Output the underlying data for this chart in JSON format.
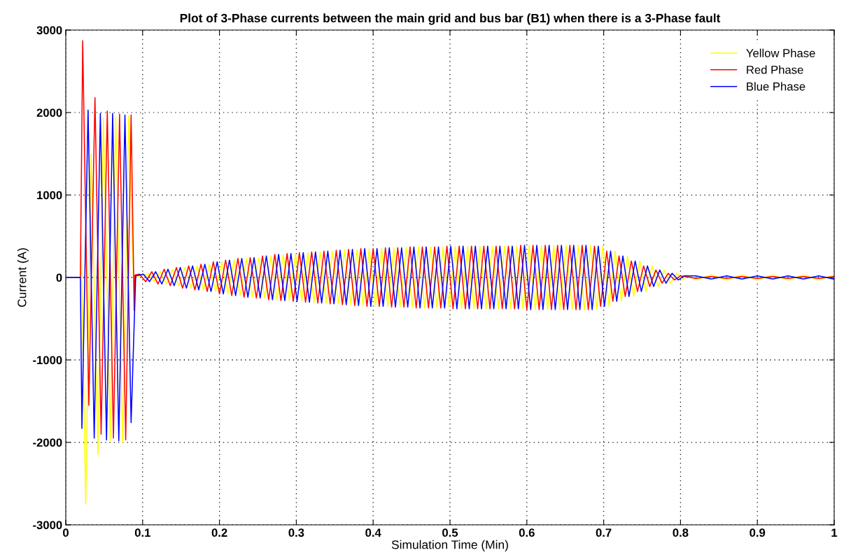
{
  "chart_data": {
    "type": "line",
    "title": "Plot of 3-Phase currents between the main grid and bus bar (B1) when there is a 3-Phase fault",
    "xlabel": "Simulation Time (Min)",
    "ylabel": "Current (A)",
    "xlim": [
      0,
      1
    ],
    "ylim": [
      -3000,
      3000
    ],
    "xticks": [
      0,
      0.1,
      0.2,
      0.3,
      0.4,
      0.5,
      0.6,
      0.7,
      0.8,
      0.9,
      1
    ],
    "yticks": [
      -3000,
      -2000,
      -1000,
      0,
      1000,
      2000,
      3000
    ],
    "grid": true,
    "legend": "top right",
    "series": [
      {
        "name": "Yellow Phase",
        "color": "#ffff00",
        "x": [
          0,
          0.019,
          0.02,
          0.026,
          0.033,
          0.042,
          0.049,
          0.058,
          0.065,
          0.074,
          0.082,
          0.088,
          0.107,
          0.115,
          0.123,
          0.131,
          0.139,
          0.147,
          0.155,
          0.163,
          0.171,
          0.179,
          0.187,
          0.195,
          0.203,
          0.211,
          0.219,
          0.227,
          0.235,
          0.243,
          0.251,
          0.259,
          0.267,
          0.275,
          0.283,
          0.291,
          0.299,
          0.307,
          0.315,
          0.323,
          0.331,
          0.339,
          0.347,
          0.355,
          0.363,
          0.371,
          0.379,
          0.387,
          0.395,
          0.403,
          0.411,
          0.419,
          0.427,
          0.435,
          0.443,
          0.451,
          0.459,
          0.467,
          0.475,
          0.483,
          0.491,
          0.499,
          0.507,
          0.515,
          0.523,
          0.531,
          0.539,
          0.547,
          0.555,
          0.563,
          0.571,
          0.579,
          0.587,
          0.595,
          0.603,
          0.611,
          0.619,
          0.627,
          0.635,
          0.643,
          0.651,
          0.659,
          0.667,
          0.675,
          0.683,
          0.691,
          0.699,
          0.707,
          0.715,
          0.723,
          0.731,
          0.739,
          0.747,
          0.755,
          0.763,
          0.771,
          0.779,
          0.787,
          0.795,
          0.803,
          0.811,
          0.82,
          0.84,
          0.86,
          0.88,
          0.9,
          0.92,
          0.94,
          0.96,
          0.98,
          1.0
        ],
        "values": [
          0,
          0,
          400,
          -2750,
          1500,
          -2150,
          1930,
          -1980,
          1950,
          -2000,
          1960,
          0,
          40,
          -50,
          70,
          -80,
          100,
          -100,
          120,
          -130,
          140,
          -150,
          160,
          -170,
          190,
          -200,
          210,
          -220,
          230,
          -240,
          240,
          -250,
          260,
          -270,
          280,
          -280,
          290,
          -290,
          300,
          -300,
          310,
          -310,
          320,
          -320,
          330,
          -330,
          340,
          -340,
          350,
          -350,
          350,
          -350,
          360,
          -360,
          360,
          -360,
          370,
          -370,
          370,
          -370,
          370,
          -370,
          380,
          -380,
          380,
          -380,
          380,
          -380,
          380,
          -380,
          380,
          -380,
          380,
          -380,
          390,
          -390,
          390,
          -390,
          390,
          -390,
          390,
          -390,
          390,
          -390,
          390,
          -390,
          380,
          -350,
          320,
          -290,
          260,
          -230,
          200,
          -170,
          140,
          -110,
          90,
          -70,
          50,
          -30,
          20,
          -30,
          30,
          -30,
          30,
          -30,
          30,
          -30,
          30,
          -30,
          30
        ]
      },
      {
        "name": "Red Phase",
        "color": "#ff0000",
        "x": [
          0,
          0.019,
          0.022,
          0.03,
          0.038,
          0.046,
          0.054,
          0.062,
          0.07,
          0.078,
          0.085,
          0.089,
          0.09,
          0.096,
          0.104,
          0.112,
          0.12,
          0.128,
          0.136,
          0.144,
          0.152,
          0.16,
          0.168,
          0.176,
          0.184,
          0.192,
          0.2,
          0.208,
          0.216,
          0.224,
          0.232,
          0.24,
          0.248,
          0.256,
          0.264,
          0.272,
          0.28,
          0.288,
          0.296,
          0.304,
          0.312,
          0.32,
          0.328,
          0.336,
          0.344,
          0.352,
          0.36,
          0.368,
          0.376,
          0.384,
          0.392,
          0.4,
          0.408,
          0.416,
          0.424,
          0.432,
          0.44,
          0.448,
          0.456,
          0.464,
          0.472,
          0.48,
          0.488,
          0.496,
          0.504,
          0.512,
          0.52,
          0.528,
          0.536,
          0.544,
          0.552,
          0.56,
          0.568,
          0.576,
          0.584,
          0.592,
          0.6,
          0.608,
          0.616,
          0.624,
          0.632,
          0.64,
          0.648,
          0.656,
          0.664,
          0.672,
          0.68,
          0.688,
          0.696,
          0.704,
          0.712,
          0.72,
          0.728,
          0.736,
          0.744,
          0.752,
          0.76,
          0.768,
          0.776,
          0.784,
          0.792,
          0.8,
          0.82,
          0.84,
          0.86,
          0.88,
          0.9,
          0.92,
          0.94,
          0.96,
          0.98,
          1.0
        ],
        "values": [
          0,
          0,
          2870,
          -1550,
          2180,
          -1900,
          2020,
          -1950,
          1980,
          -1970,
          1970,
          -400,
          30,
          40,
          -50,
          70,
          -80,
          100,
          -100,
          120,
          -130,
          140,
          -150,
          160,
          -170,
          190,
          -200,
          210,
          -220,
          230,
          -240,
          240,
          -250,
          260,
          -270,
          280,
          -280,
          290,
          -290,
          300,
          -300,
          310,
          -310,
          320,
          -320,
          330,
          -330,
          340,
          -340,
          350,
          -350,
          350,
          -350,
          360,
          -360,
          360,
          -360,
          370,
          -370,
          370,
          -370,
          370,
          -370,
          380,
          -380,
          380,
          -380,
          380,
          -380,
          380,
          -380,
          380,
          -380,
          380,
          -380,
          390,
          -390,
          390,
          -390,
          390,
          -390,
          390,
          -390,
          390,
          -390,
          390,
          -390,
          380,
          -350,
          320,
          -290,
          260,
          -230,
          200,
          -170,
          140,
          -110,
          90,
          -70,
          50,
          -30,
          20,
          -10,
          10,
          -10,
          10,
          -10,
          10,
          -10,
          10,
          -10,
          10
        ]
      },
      {
        "name": "Blue Phase",
        "color": "#0000ff",
        "x": [
          0,
          0.019,
          0.021,
          0.029,
          0.037,
          0.045,
          0.053,
          0.061,
          0.069,
          0.077,
          0.085,
          0.091,
          0.101,
          0.109,
          0.117,
          0.125,
          0.133,
          0.141,
          0.149,
          0.157,
          0.165,
          0.173,
          0.181,
          0.189,
          0.197,
          0.205,
          0.213,
          0.221,
          0.229,
          0.237,
          0.245,
          0.253,
          0.261,
          0.269,
          0.277,
          0.285,
          0.293,
          0.301,
          0.309,
          0.317,
          0.325,
          0.333,
          0.341,
          0.349,
          0.357,
          0.365,
          0.373,
          0.381,
          0.389,
          0.397,
          0.405,
          0.413,
          0.421,
          0.429,
          0.437,
          0.445,
          0.453,
          0.461,
          0.469,
          0.477,
          0.485,
          0.493,
          0.501,
          0.509,
          0.517,
          0.525,
          0.533,
          0.541,
          0.549,
          0.557,
          0.565,
          0.573,
          0.581,
          0.589,
          0.597,
          0.605,
          0.613,
          0.621,
          0.629,
          0.637,
          0.645,
          0.653,
          0.661,
          0.669,
          0.677,
          0.685,
          0.693,
          0.701,
          0.709,
          0.717,
          0.725,
          0.733,
          0.741,
          0.749,
          0.757,
          0.765,
          0.773,
          0.781,
          0.789,
          0.797,
          0.805,
          0.82,
          0.84,
          0.86,
          0.88,
          0.9,
          0.92,
          0.94,
          0.96,
          0.98,
          1.0
        ],
        "values": [
          0,
          0,
          -1830,
          2030,
          -1950,
          1990,
          -1970,
          1990,
          -1980,
          1970,
          -1760,
          20,
          40,
          -50,
          70,
          -80,
          100,
          -100,
          120,
          -130,
          140,
          -150,
          160,
          -170,
          190,
          -200,
          210,
          -220,
          230,
          -240,
          240,
          -250,
          260,
          -270,
          280,
          -280,
          290,
          -290,
          300,
          -300,
          310,
          -310,
          320,
          -320,
          330,
          -330,
          340,
          -340,
          350,
          -350,
          350,
          -350,
          360,
          -360,
          360,
          -360,
          370,
          -370,
          370,
          -370,
          370,
          -370,
          380,
          -380,
          380,
          -380,
          380,
          -380,
          380,
          -380,
          380,
          -380,
          380,
          -380,
          390,
          -390,
          390,
          -390,
          390,
          -390,
          390,
          -390,
          390,
          -390,
          390,
          -390,
          380,
          -350,
          320,
          -290,
          260,
          -230,
          200,
          -170,
          140,
          -110,
          90,
          -70,
          50,
          -30,
          20,
          20,
          -20,
          20,
          -20,
          20,
          -20,
          20,
          -20,
          20,
          -20
        ]
      }
    ]
  }
}
